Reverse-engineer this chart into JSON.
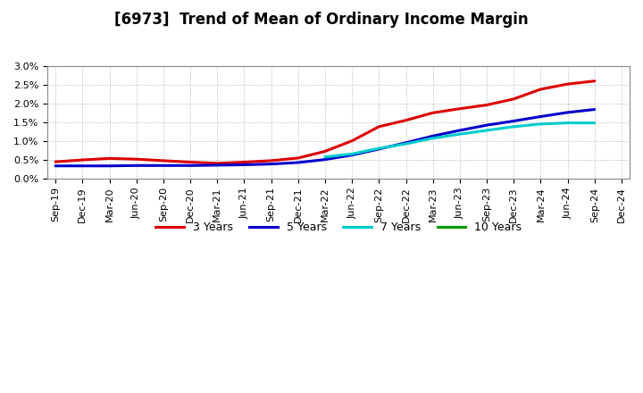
{
  "title": "[6973]  Trend of Mean of Ordinary Income Margin",
  "ylim": [
    0.0,
    0.03
  ],
  "yticks": [
    0.0,
    0.005,
    0.01,
    0.015,
    0.02,
    0.025,
    0.03
  ],
  "background_color": "#ffffff",
  "plot_bg_color": "#ffffff",
  "grid_color": "#aaaaaa",
  "x_labels": [
    "Sep-19",
    "Dec-19",
    "Mar-20",
    "Jun-20",
    "Sep-20",
    "Dec-20",
    "Mar-21",
    "Jun-21",
    "Sep-21",
    "Dec-21",
    "Mar-22",
    "Jun-22",
    "Sep-22",
    "Dec-22",
    "Mar-23",
    "Jun-23",
    "Sep-23",
    "Dec-23",
    "Mar-24",
    "Jun-24",
    "Sep-24",
    "Dec-24"
  ],
  "series": {
    "3 Years": {
      "color": "#dd0000",
      "data_x": [
        "Sep-19",
        "Dec-19",
        "Mar-20",
        "Jun-20",
        "Sep-20",
        "Dec-20",
        "Mar-21",
        "Jun-21",
        "Sep-21",
        "Dec-21",
        "Mar-22",
        "Jun-22",
        "Sep-22",
        "Dec-22",
        "Mar-23",
        "Jun-23",
        "Sep-23",
        "Dec-23",
        "Mar-24",
        "Jun-24",
        "Sep-24"
      ],
      "data_y": [
        0.0044,
        0.0049,
        0.0053,
        0.0051,
        0.0047,
        0.0043,
        0.004,
        0.0043,
        0.0047,
        0.0054,
        0.0072,
        0.01,
        0.0138,
        0.0155,
        0.0175,
        0.0186,
        0.0196,
        0.0212,
        0.0238,
        0.0252,
        0.026
      ]
    },
    "5 Years": {
      "color": "#0000cc",
      "data_x": [
        "Sep-19",
        "Dec-19",
        "Mar-20",
        "Jun-20",
        "Sep-20",
        "Dec-20",
        "Mar-21",
        "Jun-21",
        "Sep-21",
        "Dec-21",
        "Mar-22",
        "Jun-22",
        "Sep-22",
        "Dec-22",
        "Mar-23",
        "Jun-23",
        "Sep-23",
        "Dec-23",
        "Mar-24",
        "Jun-24",
        "Sep-24"
      ],
      "data_y": [
        0.0033,
        0.0033,
        0.0033,
        0.0034,
        0.0034,
        0.0034,
        0.0035,
        0.0036,
        0.0038,
        0.0042,
        0.005,
        0.0062,
        0.0078,
        0.0095,
        0.0113,
        0.0128,
        0.0142,
        0.0153,
        0.0165,
        0.0176,
        0.0184
      ]
    },
    "7 Years": {
      "color": "#00cccc",
      "data_x": [
        "Mar-22",
        "Jun-22",
        "Sep-22",
        "Dec-22",
        "Mar-23",
        "Jun-23",
        "Sep-23",
        "Dec-23",
        "Mar-24",
        "Jun-24",
        "Sep-24"
      ],
      "data_y": [
        0.0057,
        0.0065,
        0.008,
        0.0092,
        0.0107,
        0.0118,
        0.0128,
        0.0138,
        0.0145,
        0.0148,
        0.0148
      ]
    },
    "10 Years": {
      "color": "#009900",
      "data_x": [],
      "data_y": []
    }
  },
  "legend_labels": [
    "3 Years",
    "5 Years",
    "7 Years",
    "10 Years"
  ],
  "legend_colors": [
    "#dd0000",
    "#0000cc",
    "#00cccc",
    "#009900"
  ],
  "title_fontsize": 12,
  "tick_fontsize": 8,
  "legend_fontsize": 9,
  "linewidth": 2.2
}
